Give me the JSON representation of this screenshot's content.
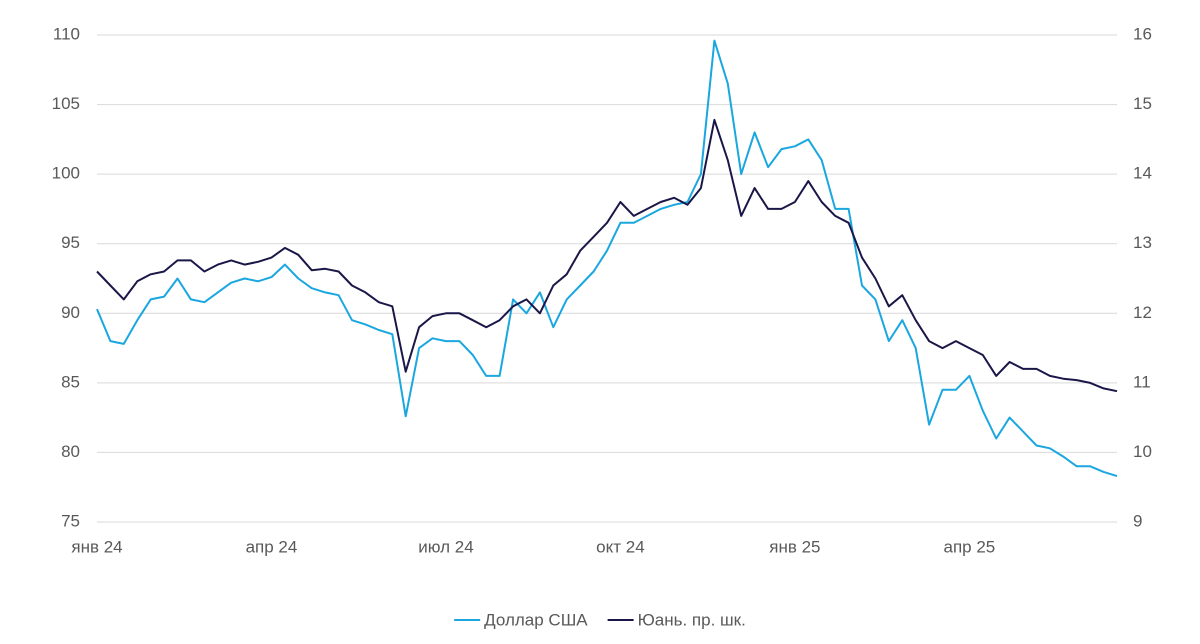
{
  "chart_data": {
    "type": "line",
    "categories": [
      "янв 24",
      null,
      null,
      null,
      null,
      null,
      null,
      null,
      null,
      null,
      null,
      null,
      null,
      "апр 24",
      null,
      null,
      null,
      null,
      null,
      null,
      null,
      null,
      null,
      null,
      null,
      null,
      "июл 24",
      null,
      null,
      null,
      null,
      null,
      null,
      null,
      null,
      null,
      null,
      null,
      null,
      "окт 24",
      null,
      null,
      null,
      null,
      null,
      null,
      null,
      null,
      null,
      null,
      null,
      null,
      "янв 25",
      null,
      null,
      null,
      null,
      null,
      null,
      null,
      null,
      null,
      null,
      null,
      null,
      "апр 25",
      null,
      null,
      null,
      null,
      null,
      null,
      null,
      null,
      null,
      null,
      null
    ],
    "series": [
      {
        "name": "Доллар США",
        "color": "#1aa7e0",
        "axis": "y",
        "values": [
          90.3,
          88,
          87.8,
          89.5,
          91,
          91.2,
          92.5,
          91,
          90.8,
          91.5,
          92.2,
          92.5,
          92.3,
          92.6,
          93.5,
          92.5,
          91.8,
          91.5,
          91.3,
          89.5,
          89.2,
          88.8,
          88.5,
          82.6,
          87.5,
          88.2,
          88,
          88,
          87,
          85.5,
          85.5,
          91,
          90,
          91.5,
          89,
          91,
          92,
          93,
          94.5,
          96.5,
          96.5,
          97,
          97.5,
          97.8,
          98,
          100,
          109.6,
          106.5,
          100,
          103,
          100.5,
          101.8,
          102,
          102.5,
          101,
          97.5,
          97.5,
          92,
          91,
          88,
          89.5,
          87.5,
          82,
          84.5,
          84.5,
          85.5,
          83,
          81,
          82.5,
          81.5,
          80.5,
          80.3,
          79.7,
          79,
          79,
          78.6,
          78.3
        ]
      },
      {
        "name": "Юань. пр. шк.",
        "color": "#1a1748",
        "axis": "y2",
        "values": [
          12.6,
          12.4,
          12.2,
          12.46,
          12.56,
          12.6,
          12.76,
          12.76,
          12.6,
          12.7,
          12.76,
          12.7,
          12.74,
          12.8,
          12.94,
          12.84,
          12.62,
          12.64,
          12.6,
          12.4,
          12.3,
          12.16,
          12.1,
          11.16,
          11.8,
          11.96,
          12,
          12,
          11.9,
          11.8,
          11.9,
          12.1,
          12.2,
          12,
          12.4,
          12.56,
          12.9,
          13.1,
          13.3,
          13.6,
          13.4,
          13.5,
          13.6,
          13.66,
          13.56,
          13.8,
          14.78,
          14.2,
          13.4,
          13.8,
          13.5,
          13.5,
          13.6,
          13.9,
          13.6,
          13.4,
          13.3,
          12.8,
          12.5,
          12.1,
          12.26,
          11.9,
          11.6,
          11.5,
          11.6,
          11.5,
          11.4,
          11.1,
          11.3,
          11.2,
          11.2,
          11.1,
          11.06,
          11.04,
          11,
          10.92,
          10.88
        ]
      }
    ],
    "ylim": [
      75,
      110
    ],
    "yticks": [
      75,
      80,
      85,
      90,
      95,
      100,
      105,
      110
    ],
    "y2lim": [
      9,
      16
    ],
    "y2ticks": [
      9,
      10,
      11,
      12,
      13,
      14,
      15,
      16
    ],
    "grid": true,
    "legend": "bottom"
  }
}
